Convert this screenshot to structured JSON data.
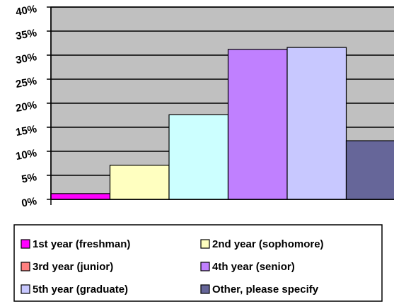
{
  "chart_data": {
    "type": "bar",
    "ylim": [
      0,
      40
    ],
    "yticks": [
      {
        "value": 0,
        "label": "0%"
      },
      {
        "value": 5,
        "label": "5%"
      },
      {
        "value": 10,
        "label": "10%"
      },
      {
        "value": 15,
        "label": "15%"
      },
      {
        "value": 20,
        "label": "20%"
      },
      {
        "value": 25,
        "label": "25%"
      },
      {
        "value": 30,
        "label": "30%"
      },
      {
        "value": 35,
        "label": "35%"
      },
      {
        "value": 40,
        "label": "40%"
      }
    ],
    "grid": true,
    "plot_background": "#c0c0c0",
    "legend": "bottom",
    "series": [
      {
        "name": "1st year (freshman)",
        "color": "#ff00ff",
        "swatch": "#ff00ff",
        "values": [
          1.2
        ]
      },
      {
        "name": "2nd year (sophomore)",
        "color": "#ffffc0",
        "swatch": "#ffffc0",
        "values": [
          7.1
        ]
      },
      {
        "name": "3rd year (junior)",
        "color": "#ccffff",
        "swatch": "#ff8080",
        "values": [
          17.6
        ]
      },
      {
        "name": "4th year (senior)",
        "color": "#c080ff",
        "swatch": "#c080ff",
        "values": [
          31.2
        ]
      },
      {
        "name": "5th year (graduate)",
        "color": "#c8c8ff",
        "swatch": "#c8c8ff",
        "values": [
          31.6
        ]
      },
      {
        "name": "Other, please specify",
        "color": "#666699",
        "swatch": "#666699",
        "values": [
          12.2
        ]
      }
    ]
  }
}
